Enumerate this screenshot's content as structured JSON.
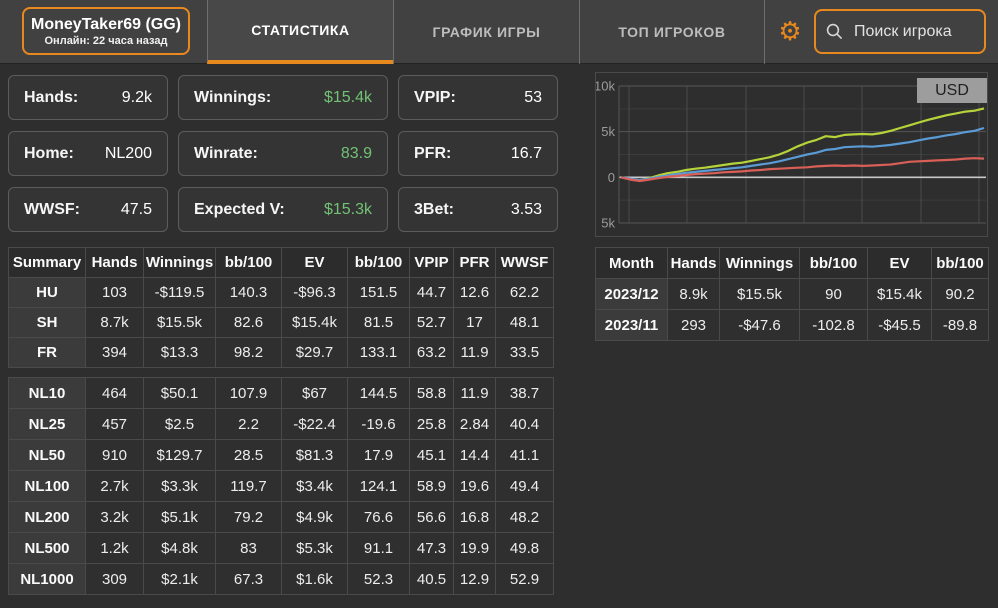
{
  "colors": {
    "accent": "#e8891d",
    "positive": "#72c274",
    "negative": "#de5850"
  },
  "header": {
    "player_name": "MoneyTaker69 (GG)",
    "player_status": "Онлайн: 22 часа назад",
    "tabs": [
      {
        "label": "СТАТИСТИКА",
        "active": true
      },
      {
        "label": "ГРАФИК ИГРЫ",
        "active": false
      },
      {
        "label": "ТОП ИГРОКОВ",
        "active": false
      }
    ],
    "search_placeholder": "Поиск игрока"
  },
  "stats": [
    {
      "label": "Hands:",
      "value": "9.2k",
      "color": "plain"
    },
    {
      "label": "Winnings:",
      "value": "$15.4k",
      "color": "green"
    },
    {
      "label": "VPIP:",
      "value": "53",
      "color": "plain"
    },
    {
      "label": "Home:",
      "value": "NL200",
      "color": "plain"
    },
    {
      "label": "Winrate:",
      "value": "83.9",
      "color": "green"
    },
    {
      "label": "PFR:",
      "value": "16.7",
      "color": "plain"
    },
    {
      "label": "WWSF:",
      "value": "47.5",
      "color": "plain"
    },
    {
      "label": "Expected V:",
      "value": "$15.3k",
      "color": "green"
    },
    {
      "label": "3Bet:",
      "value": "3.53",
      "color": "plain"
    }
  ],
  "summary_table": {
    "headers": [
      "Summary",
      "Hands",
      "Winnings",
      "bb/100",
      "EV",
      "bb/100",
      "VPIP",
      "PFR",
      "WWSF"
    ],
    "rows": [
      {
        "label": "HU",
        "cells": [
          [
            "103",
            "plain"
          ],
          [
            "-$119.5",
            "red"
          ],
          [
            "140.3",
            "plain"
          ],
          [
            "-$96.3",
            "red"
          ],
          [
            "151.5",
            "plain"
          ],
          [
            "44.7",
            "plain"
          ],
          [
            "12.6",
            "plain"
          ],
          [
            "62.2",
            "plain"
          ]
        ]
      },
      {
        "label": "SH",
        "cells": [
          [
            "8.7k",
            "plain"
          ],
          [
            "$15.5k",
            "green"
          ],
          [
            "82.6",
            "plain"
          ],
          [
            "$15.4k",
            "green"
          ],
          [
            "81.5",
            "plain"
          ],
          [
            "52.7",
            "plain"
          ],
          [
            "17",
            "plain"
          ],
          [
            "48.1",
            "plain"
          ]
        ]
      },
      {
        "label": "FR",
        "cells": [
          [
            "394",
            "plain"
          ],
          [
            "$13.3",
            "green"
          ],
          [
            "98.2",
            "plain"
          ],
          [
            "$29.7",
            "green"
          ],
          [
            "133.1",
            "plain"
          ],
          [
            "63.2",
            "plain"
          ],
          [
            "11.9",
            "plain"
          ],
          [
            "33.5",
            "plain"
          ]
        ]
      }
    ]
  },
  "stakes_table": {
    "rows": [
      {
        "label": "NL10",
        "cells": [
          [
            "464",
            "plain"
          ],
          [
            "$50.1",
            "green"
          ],
          [
            "107.9",
            "plain"
          ],
          [
            "$67",
            "green"
          ],
          [
            "144.5",
            "plain"
          ],
          [
            "58.8",
            "plain"
          ],
          [
            "11.9",
            "plain"
          ],
          [
            "38.7",
            "plain"
          ]
        ]
      },
      {
        "label": "NL25",
        "cells": [
          [
            "457",
            "plain"
          ],
          [
            "$2.5",
            "green"
          ],
          [
            "2.2",
            "plain"
          ],
          [
            "-$22.4",
            "red"
          ],
          [
            "-19.6",
            "plain"
          ],
          [
            "25.8",
            "plain"
          ],
          [
            "2.84",
            "plain"
          ],
          [
            "40.4",
            "plain"
          ]
        ]
      },
      {
        "label": "NL50",
        "cells": [
          [
            "910",
            "plain"
          ],
          [
            "$129.7",
            "green"
          ],
          [
            "28.5",
            "plain"
          ],
          [
            "$81.3",
            "green"
          ],
          [
            "17.9",
            "plain"
          ],
          [
            "45.1",
            "plain"
          ],
          [
            "14.4",
            "plain"
          ],
          [
            "41.1",
            "plain"
          ]
        ]
      },
      {
        "label": "NL100",
        "cells": [
          [
            "2.7k",
            "plain"
          ],
          [
            "$3.3k",
            "green"
          ],
          [
            "119.7",
            "plain"
          ],
          [
            "$3.4k",
            "green"
          ],
          [
            "124.1",
            "plain"
          ],
          [
            "58.9",
            "plain"
          ],
          [
            "19.6",
            "plain"
          ],
          [
            "49.4",
            "plain"
          ]
        ]
      },
      {
        "label": "NL200",
        "cells": [
          [
            "3.2k",
            "plain"
          ],
          [
            "$5.1k",
            "green"
          ],
          [
            "79.2",
            "plain"
          ],
          [
            "$4.9k",
            "green"
          ],
          [
            "76.6",
            "plain"
          ],
          [
            "56.6",
            "plain"
          ],
          [
            "16.8",
            "plain"
          ],
          [
            "48.2",
            "plain"
          ]
        ]
      },
      {
        "label": "NL500",
        "cells": [
          [
            "1.2k",
            "plain"
          ],
          [
            "$4.8k",
            "green"
          ],
          [
            "83",
            "plain"
          ],
          [
            "$5.3k",
            "green"
          ],
          [
            "91.1",
            "plain"
          ],
          [
            "47.3",
            "plain"
          ],
          [
            "19.9",
            "plain"
          ],
          [
            "49.8",
            "plain"
          ]
        ]
      },
      {
        "label": "NL1000",
        "cells": [
          [
            "309",
            "plain"
          ],
          [
            "$2.1k",
            "green"
          ],
          [
            "67.3",
            "plain"
          ],
          [
            "$1.6k",
            "green"
          ],
          [
            "52.3",
            "plain"
          ],
          [
            "40.5",
            "plain"
          ],
          [
            "12.9",
            "plain"
          ],
          [
            "52.9",
            "plain"
          ]
        ]
      }
    ]
  },
  "month_table": {
    "headers": [
      "Month",
      "Hands",
      "Winnings",
      "bb/100",
      "EV",
      "bb/100"
    ],
    "rows": [
      {
        "label": "2023/12",
        "cells": [
          [
            "8.9k",
            "plain"
          ],
          [
            "$15.5k",
            "green"
          ],
          [
            "90",
            "plain"
          ],
          [
            "$15.4k",
            "green"
          ],
          [
            "90.2",
            "plain"
          ]
        ]
      },
      {
        "label": "2023/11",
        "cells": [
          [
            "293",
            "plain"
          ],
          [
            "-$47.6",
            "red"
          ],
          [
            "-102.8",
            "plain"
          ],
          [
            "-$45.5",
            "red"
          ],
          [
            "-89.8",
            "plain"
          ]
        ]
      }
    ]
  },
  "chart_data": {
    "type": "line",
    "currency_label": "USD",
    "xlabel": "",
    "ylabel": "",
    "ylim": [
      -5000,
      10000
    ],
    "grid": true,
    "yticks": [
      {
        "value": 10000,
        "label": "10k"
      },
      {
        "value": 5000,
        "label": "5k"
      },
      {
        "value": 0,
        "label": "0"
      },
      {
        "value": -5000,
        "label": "5k"
      }
    ],
    "minor_yticks": [
      7500,
      2500,
      -2500
    ],
    "series": [
      {
        "name": "green-line",
        "color": "#b6d43a",
        "values": [
          0,
          -200,
          -350,
          -100,
          200,
          450,
          600,
          800,
          950,
          1050,
          1200,
          1350,
          1500,
          1600,
          1800,
          2000,
          2200,
          2500,
          2900,
          3400,
          3800,
          4100,
          4500,
          4400,
          4650,
          4700,
          4750,
          4700,
          4850,
          5100,
          5400,
          5700,
          6000,
          6300,
          6550,
          6800,
          7000,
          7200,
          7300,
          7550
        ]
      },
      {
        "name": "blue-line",
        "color": "#5b9bd5",
        "values": [
          0,
          -150,
          -300,
          -150,
          50,
          200,
          350,
          500,
          600,
          700,
          800,
          900,
          1000,
          1100,
          1250,
          1400,
          1550,
          1750,
          2000,
          2250,
          2500,
          2700,
          3000,
          3100,
          3300,
          3350,
          3400,
          3350,
          3450,
          3550,
          3700,
          3850,
          4050,
          4250,
          4400,
          4600,
          4750,
          4950,
          5100,
          5400
        ]
      },
      {
        "name": "red-line",
        "color": "#d95f57",
        "values": [
          0,
          -250,
          -400,
          -250,
          -100,
          50,
          150,
          250,
          350,
          400,
          450,
          550,
          600,
          650,
          750,
          800,
          900,
          950,
          1000,
          1050,
          1100,
          1200,
          1250,
          1300,
          1250,
          1300,
          1250,
          1300,
          1350,
          1400,
          1550,
          1700,
          1750,
          1800,
          1850,
          1900,
          1950,
          2050,
          2100,
          2050
        ]
      }
    ]
  }
}
